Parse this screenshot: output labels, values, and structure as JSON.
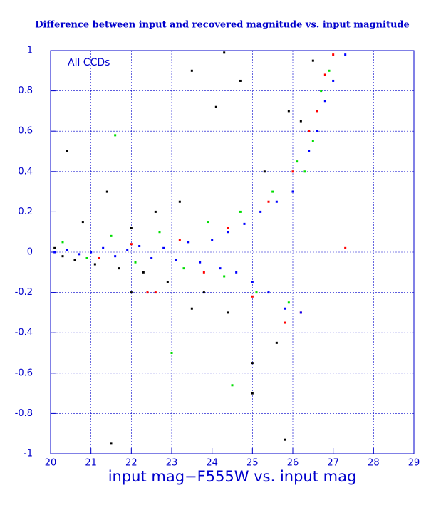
{
  "chart_data": {
    "type": "scatter",
    "title": "Difference between input and recovered magnitude vs. input magnitude",
    "xlabel": "input mag−F555W vs. input mag",
    "annotation": "All CCDs",
    "xlim": [
      20,
      29
    ],
    "ylim": [
      -1,
      1
    ],
    "xticks": [
      20,
      21,
      22,
      23,
      24,
      25,
      26,
      27,
      28,
      29
    ],
    "yticks": [
      -1,
      -0.8,
      -0.6,
      -0.4,
      -0.2,
      0,
      0.2,
      0.4,
      0.6,
      0.8,
      1
    ],
    "grid": true,
    "series": [
      {
        "color": "#000000",
        "x": [
          20.1,
          20.4,
          20.6,
          20.8,
          21.1,
          21.4,
          21.7,
          22.0,
          22.3,
          22.6,
          22.9,
          23.2,
          23.5,
          23.8,
          24.1,
          24.4,
          24.7,
          25.0,
          25.3,
          25.6,
          25.9,
          26.2,
          26.5,
          23.5,
          24.3,
          20.3,
          21.5,
          22.0,
          25.0,
          25.8
        ],
        "y": [
          0.02,
          0.5,
          -0.04,
          0.15,
          -0.06,
          0.3,
          -0.08,
          0.12,
          -0.1,
          0.2,
          -0.15,
          0.25,
          0.9,
          -0.2,
          0.72,
          -0.3,
          0.85,
          -0.55,
          0.4,
          -0.45,
          0.7,
          0.65,
          0.95,
          -0.28,
          0.99,
          -0.02,
          -0.95,
          -0.2,
          -0.7,
          -0.93
        ]
      },
      {
        "color": "#ff0000",
        "x": [
          21.2,
          22.0,
          22.6,
          23.2,
          23.8,
          24.4,
          25.0,
          25.4,
          25.8,
          26.0,
          26.2,
          26.4,
          26.6,
          26.8,
          27.0,
          27.3,
          22.4
        ],
        "y": [
          -0.03,
          0.04,
          -0.2,
          0.06,
          -0.1,
          0.12,
          -0.22,
          0.25,
          -0.35,
          0.4,
          -0.3,
          0.6,
          0.7,
          0.88,
          0.98,
          0.02,
          -0.2
        ]
      },
      {
        "color": "#00dd00",
        "x": [
          20.3,
          20.9,
          21.5,
          22.1,
          22.7,
          23.3,
          23.9,
          24.3,
          24.7,
          25.1,
          25.5,
          25.9,
          26.1,
          26.3,
          26.5,
          26.7,
          26.9,
          21.6,
          23.0,
          24.5
        ],
        "y": [
          0.05,
          -0.03,
          0.08,
          -0.05,
          0.1,
          -0.08,
          0.15,
          -0.12,
          0.2,
          -0.2,
          0.3,
          -0.25,
          0.45,
          0.4,
          0.55,
          0.8,
          0.9,
          0.58,
          -0.5,
          -0.66
        ]
      },
      {
        "color": "#0000ff",
        "x": [
          20.1,
          20.4,
          20.7,
          21.0,
          21.3,
          21.6,
          21.9,
          22.2,
          22.5,
          22.8,
          23.1,
          23.4,
          23.7,
          24.0,
          24.2,
          24.4,
          24.6,
          24.8,
          25.0,
          25.2,
          25.4,
          25.6,
          25.8,
          26.0,
          26.2,
          26.4,
          26.6,
          26.8,
          27.0,
          27.3
        ],
        "y": [
          0.0,
          0.01,
          -0.01,
          0.0,
          0.02,
          -0.02,
          0.01,
          0.03,
          -0.03,
          0.02,
          -0.04,
          0.05,
          -0.05,
          0.06,
          -0.08,
          0.1,
          -0.1,
          0.14,
          -0.15,
          0.2,
          -0.2,
          0.25,
          -0.28,
          0.3,
          -0.3,
          0.5,
          0.6,
          0.75,
          0.85,
          0.98
        ]
      }
    ]
  }
}
